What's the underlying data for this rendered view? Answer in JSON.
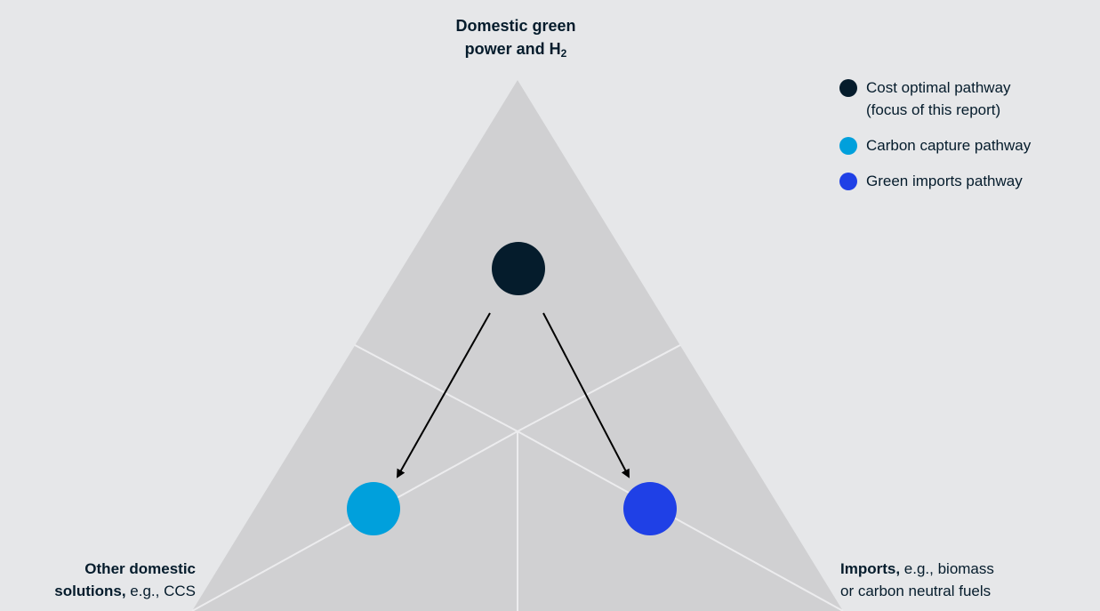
{
  "diagram": {
    "top_label": {
      "line1": "Domestic green",
      "line2_prefix": "power and H",
      "line2_sub": "2"
    },
    "left_label": {
      "line1_bold": "Other domestic",
      "line2_bold": "solutions,",
      "line2_rest": " e.g., CCS"
    },
    "right_label": {
      "line1_bold": "Imports,",
      "line1_rest": " e.g., biomass",
      "line2": "or carbon neutral fuels"
    }
  },
  "legend": {
    "items": [
      {
        "line1": "Cost optimal pathway",
        "line2": "(focus of this report)",
        "color": "#051c2c"
      },
      {
        "line1": "Carbon capture pathway",
        "color": "#00a0dc"
      },
      {
        "line1": "Green imports pathway",
        "color": "#1f40e6"
      }
    ]
  },
  "colors": {
    "background": "#e6e7e9",
    "triangle_fill": "#d0d0d2",
    "triangle_lines": "#ececee",
    "cost_optimal": "#051c2c",
    "carbon_capture": "#00a0dc",
    "green_imports": "#1f40e6",
    "arrow": "#000000"
  }
}
